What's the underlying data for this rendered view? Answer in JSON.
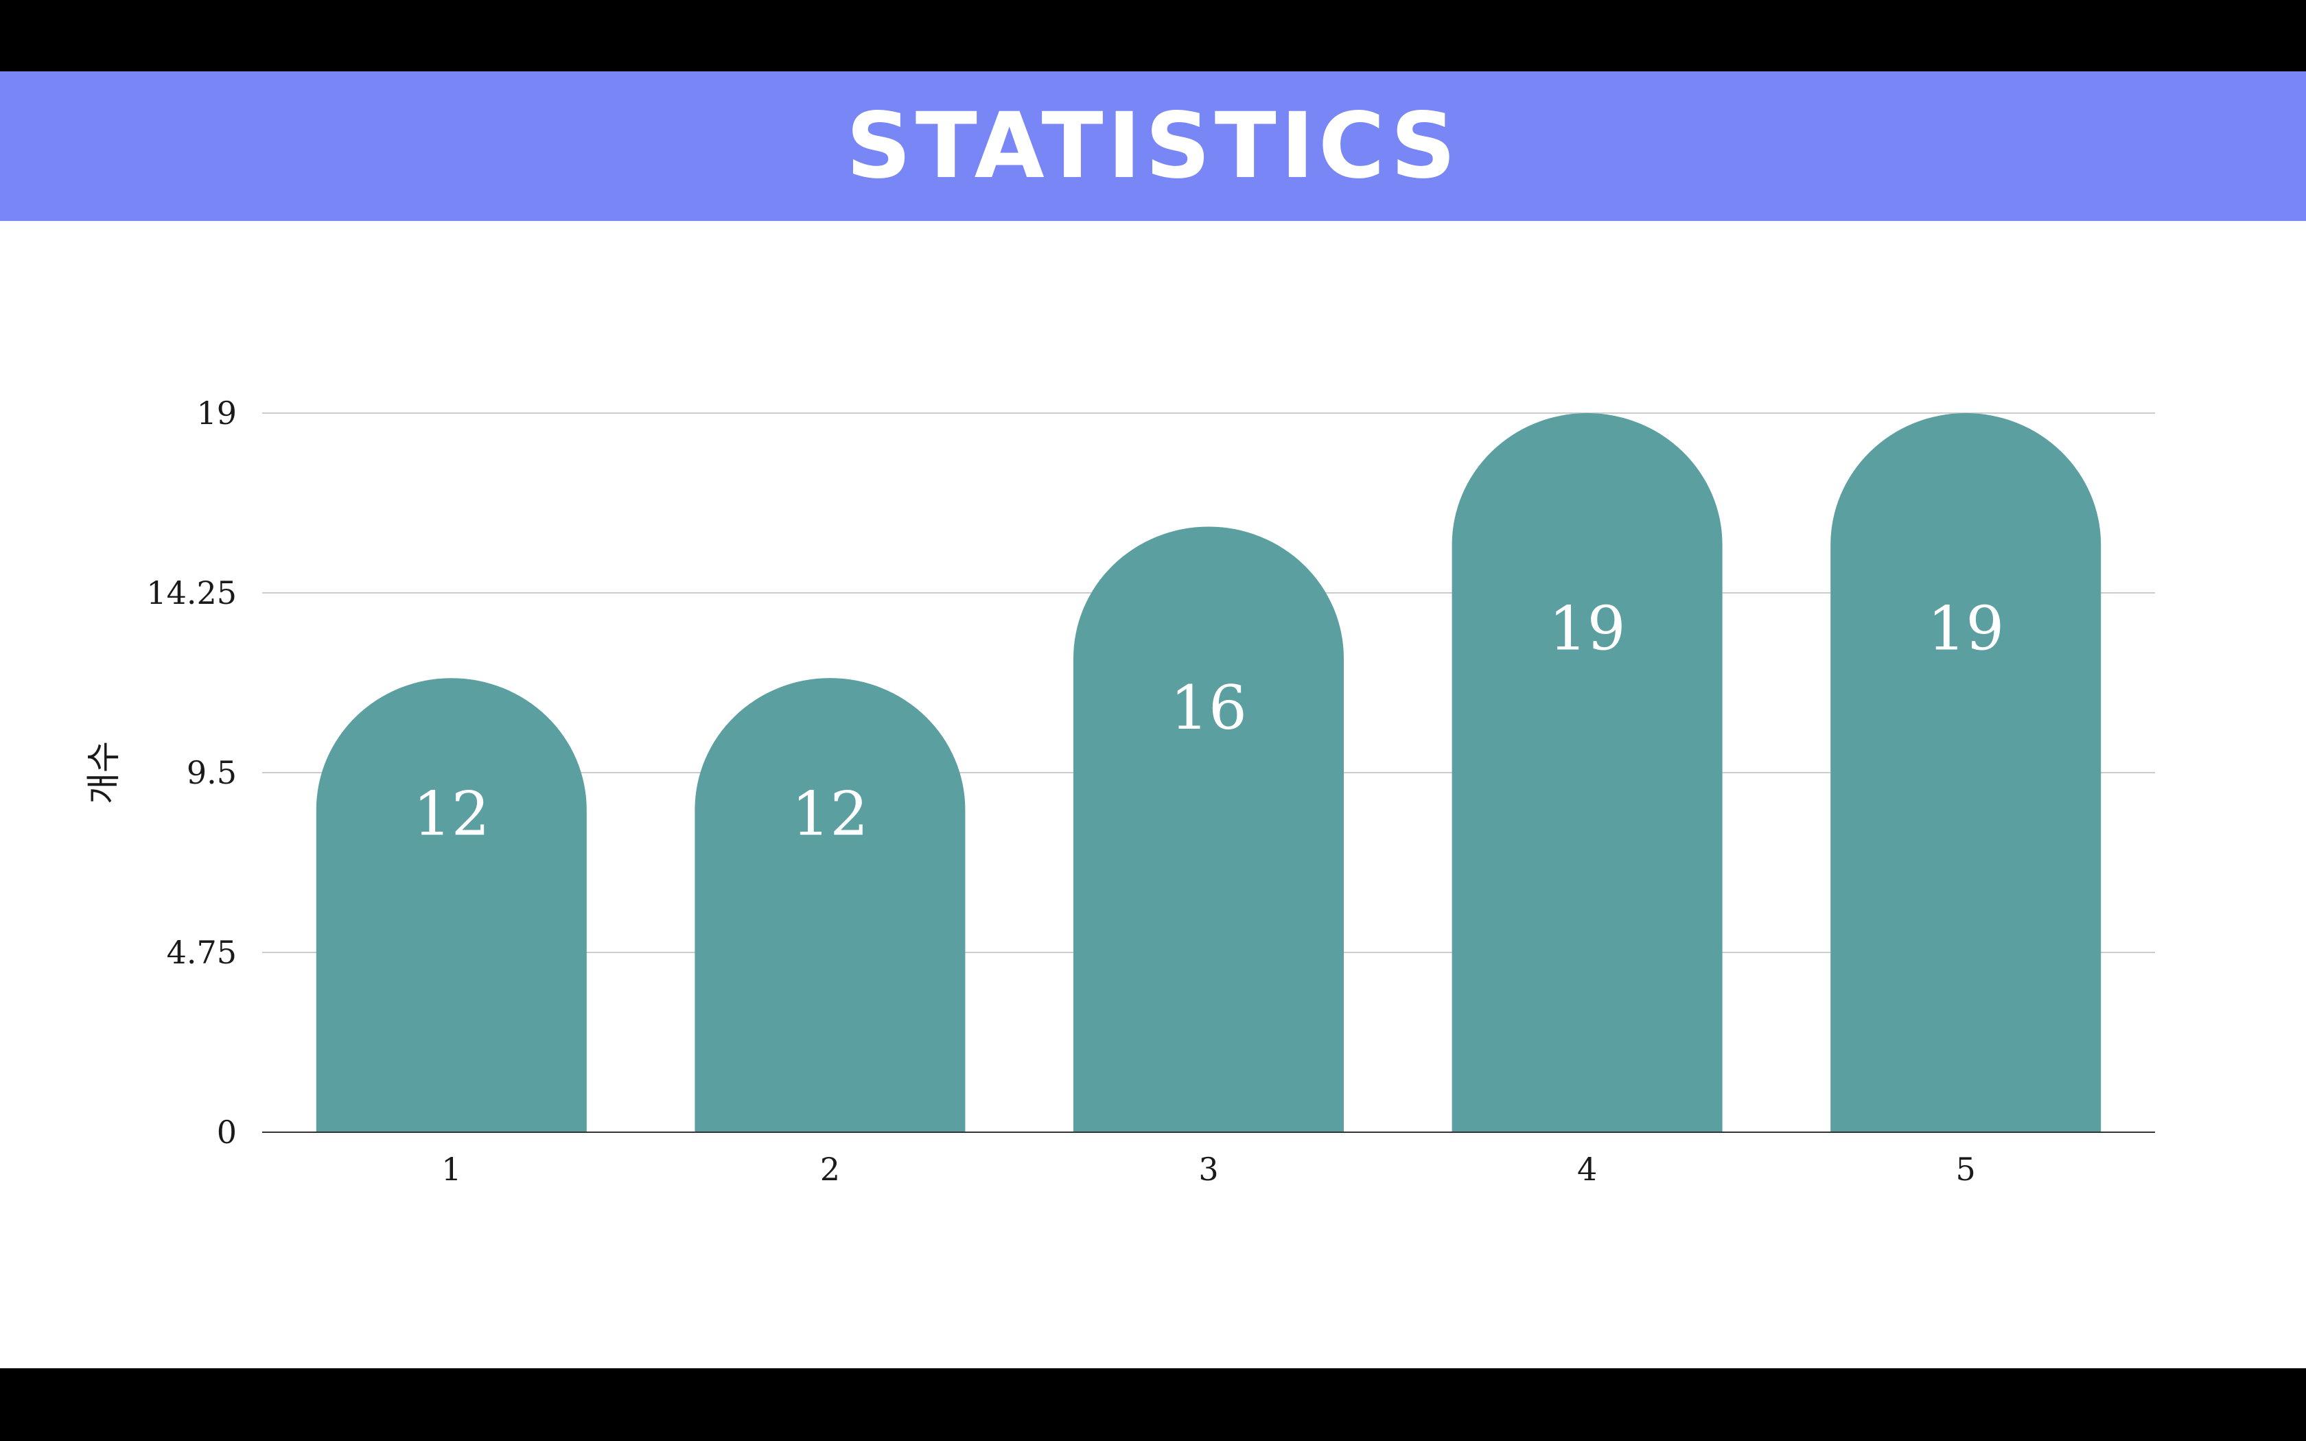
{
  "slide": {
    "header_title": "STATISTICS",
    "header_color": "#7986F5",
    "background": "#FFFFFF"
  },
  "chart_data": {
    "type": "bar",
    "categories": [
      "1",
      "2",
      "3",
      "4",
      "5"
    ],
    "values": [
      12,
      12,
      16,
      19,
      19
    ],
    "data_labels": [
      "12",
      "12",
      "16",
      "19",
      "19"
    ],
    "title": "",
    "xlabel": "",
    "ylabel": "개수",
    "ylim": [
      0,
      19
    ],
    "yticks": [
      0,
      4.75,
      9.5,
      14.25,
      19
    ],
    "ytick_labels": [
      "0",
      "4.75",
      "9.5",
      "14.25",
      "19"
    ],
    "grid": true,
    "legend": "none",
    "bar_color": "#5B9FA0",
    "label_color": "#FFFFFF",
    "bar_style": "rounded-top"
  }
}
